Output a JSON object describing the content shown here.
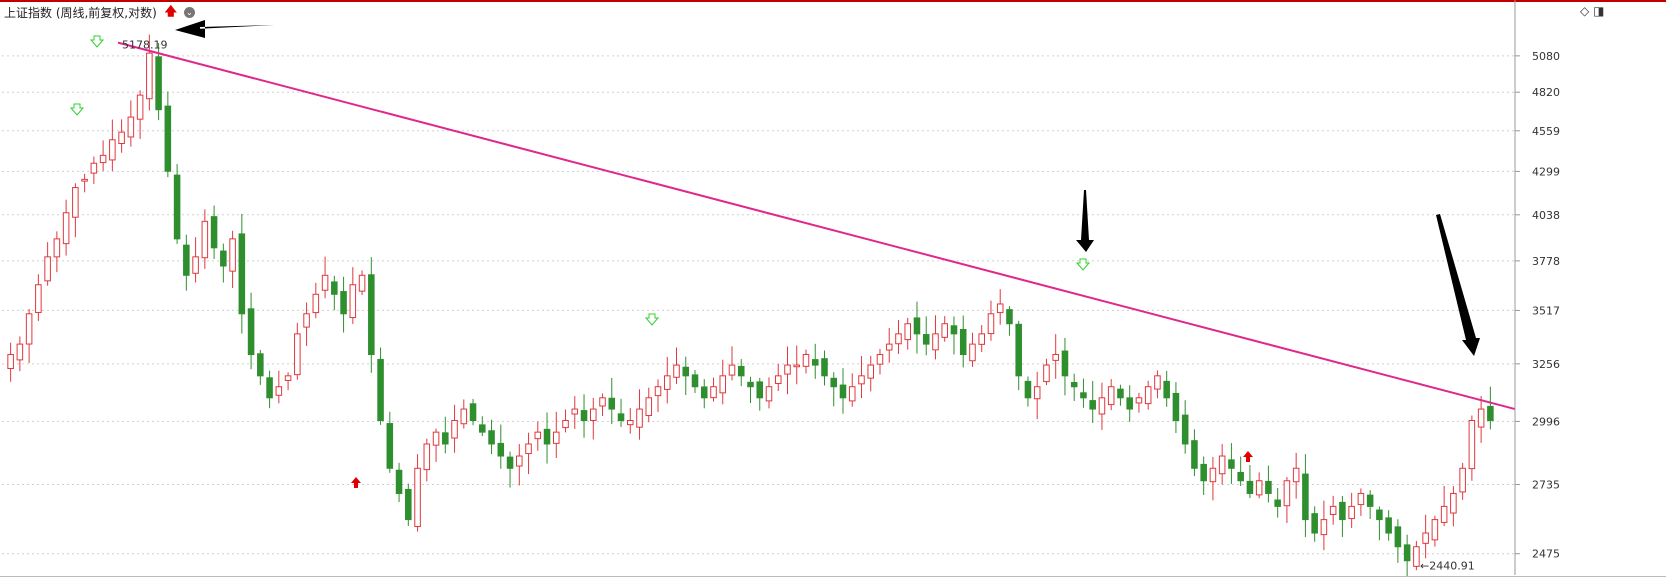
{
  "header": {
    "title": "上证指数 (周线,前复权,对数)",
    "arrow_glyph": "🡅",
    "settings_glyph": "⌄"
  },
  "toolbar": {
    "diamond_glyph": "◇",
    "panel_glyph": "◨"
  },
  "annotations": {
    "high_label": "5178.19",
    "low_label": "←2440.91"
  },
  "colors": {
    "up": "#e0383e",
    "down": "#2f8f2f",
    "trendline": "#e0288c",
    "arrow": "#000000",
    "grid": "#cfcfcf"
  },
  "chart_data": {
    "type": "candlestick",
    "y_scale": "log",
    "y_ticks": [
      5080,
      4820,
      4559,
      4299,
      4038,
      3778,
      3517,
      3256,
      2996,
      2735,
      2475
    ],
    "ylim": [
      2400,
      5350
    ],
    "grid": true,
    "high": 5178.19,
    "low": 2440.91,
    "trendline": {
      "from": 5178.19,
      "to": 3050
    },
    "approx_closes": [
      3300,
      3350,
      3500,
      3650,
      3800,
      3900,
      4050,
      4200,
      4250,
      4350,
      4400,
      4500,
      4550,
      4650,
      4800,
      5100,
      4700,
      4300,
      3900,
      3700,
      3800,
      4000,
      3850,
      3750,
      3900,
      3500,
      3300,
      3200,
      3100,
      3150,
      3200,
      3400,
      3500,
      3600,
      3700,
      3600,
      3500,
      3650,
      3700,
      3300,
      3000,
      2800,
      2700,
      2600,
      2800,
      2900,
      2950,
      2900,
      3000,
      3050,
      3000,
      2950,
      2900,
      2850,
      2800,
      2850,
      2900,
      2950,
      2900,
      2950,
      3000,
      3050,
      3000,
      3050,
      3100,
      3050,
      3000,
      3000,
      3050,
      3100,
      3150,
      3200,
      3250,
      3200,
      3150,
      3100,
      3150,
      3200,
      3250,
      3200,
      3150,
      3100,
      3150,
      3200,
      3250,
      3250,
      3300,
      3250,
      3200,
      3150,
      3100,
      3150,
      3200,
      3250,
      3300,
      3350,
      3400,
      3450,
      3400,
      3350,
      3400,
      3450,
      3400,
      3300,
      3350,
      3400,
      3500,
      3550,
      3450,
      3200,
      3100,
      3150,
      3250,
      3300,
      3200,
      3150,
      3100,
      3050,
      3100,
      3150,
      3100,
      3050,
      3100,
      3150,
      3200,
      3100,
      3000,
      2900,
      2800,
      2750,
      2800,
      2850,
      2800,
      2750,
      2700,
      2750,
      2700,
      2650,
      2750,
      2800,
      2600,
      2550,
      2600,
      2650,
      2600,
      2650,
      2700,
      2650,
      2600,
      2550,
      2500,
      2450,
      2500,
      2550,
      2600,
      2650,
      2700,
      2800,
      3000,
      3050,
      3000
    ]
  }
}
